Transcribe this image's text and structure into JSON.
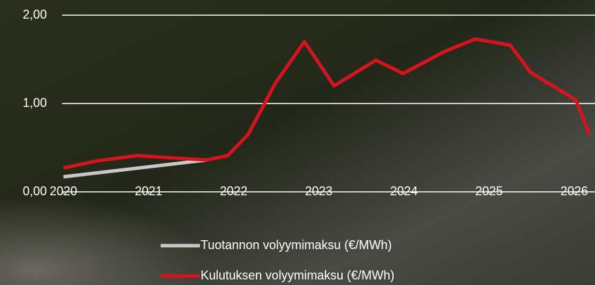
{
  "chart_data": {
    "type": "line",
    "x_label_note": null,
    "xlim": [
      2020,
      2026.22
    ],
    "xticks": [
      2020,
      2021,
      2022,
      2023,
      2024,
      2025,
      2026
    ],
    "ylim": [
      0,
      2
    ],
    "yticks": [
      {
        "value": 0,
        "label": "0,00"
      },
      {
        "value": 1,
        "label": "1,00"
      },
      {
        "value": 2,
        "label": "2,00"
      }
    ],
    "grid": true,
    "legend": "bottom",
    "series": [
      {
        "name": "Tuotannon volyymimaksu (€/MWh)",
        "color": "#c8c8c8",
        "x": [
          2020,
          2021.68
        ],
        "values": [
          0.17,
          0.36
        ]
      },
      {
        "name": "Kulutuksen volyymimaksu (€/MWh)",
        "color": "#d7141e",
        "x": [
          2020,
          2020.39,
          2020.87,
          2021.68,
          2021.93,
          2022.17,
          2022.49,
          2022.83,
          2023.18,
          2023.67,
          2023.99,
          2024.48,
          2024.84,
          2025.25,
          2025.49,
          2026.02,
          2026.18
        ],
        "values": [
          0.27,
          0.35,
          0.41,
          0.36,
          0.41,
          0.65,
          1.23,
          1.7,
          1.2,
          1.49,
          1.34,
          1.59,
          1.73,
          1.66,
          1.35,
          1.04,
          0.65
        ]
      }
    ]
  }
}
